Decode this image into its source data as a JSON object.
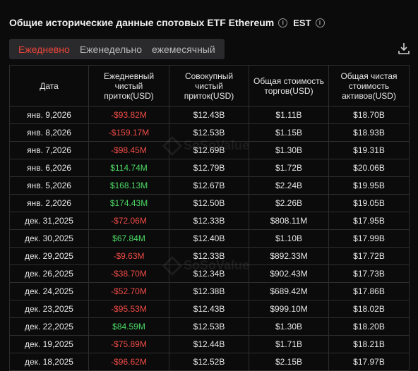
{
  "header": {
    "title": "Общие исторические данные спотовых ETF Ethereum",
    "timezone": "EST"
  },
  "tabs": [
    "Ежедневно",
    "Еженедельно",
    "ежемесячный"
  ],
  "active_tab": 0,
  "columns": [
    "Дата",
    "Ежедневный чистый приток(USD)",
    "Совокупный чистый приток(USD)",
    "Общая стоимость торгов(USD)",
    "Общая чистая стоимость активов(USD)"
  ],
  "rows": [
    {
      "date": "янв. 9,2026",
      "daily": "-$93.82M",
      "sign": "neg",
      "cumulative": "$12.43B",
      "traded": "$1.11B",
      "assets": "$18.70B"
    },
    {
      "date": "янв. 8,2026",
      "daily": "-$159.17M",
      "sign": "neg",
      "cumulative": "$12.53B",
      "traded": "$1.15B",
      "assets": "$18.93B"
    },
    {
      "date": "янв. 7,2026",
      "daily": "-$98.45M",
      "sign": "neg",
      "cumulative": "$12.69B",
      "traded": "$1.30B",
      "assets": "$19.31B"
    },
    {
      "date": "янв. 6,2026",
      "daily": "$114.74M",
      "sign": "pos",
      "cumulative": "$12.79B",
      "traded": "$1.72B",
      "assets": "$20.06B"
    },
    {
      "date": "янв. 5,2026",
      "daily": "$168.13M",
      "sign": "pos",
      "cumulative": "$12.67B",
      "traded": "$2.24B",
      "assets": "$19.95B"
    },
    {
      "date": "янв. 2,2026",
      "daily": "$174.43M",
      "sign": "pos",
      "cumulative": "$12.50B",
      "traded": "$2.26B",
      "assets": "$19.05B"
    },
    {
      "date": "дек. 31,2025",
      "daily": "-$72.06M",
      "sign": "neg",
      "cumulative": "$12.33B",
      "traded": "$808.11M",
      "assets": "$17.95B"
    },
    {
      "date": "дек. 30,2025",
      "daily": "$67.84M",
      "sign": "pos",
      "cumulative": "$12.40B",
      "traded": "$1.10B",
      "assets": "$17.99B"
    },
    {
      "date": "дек. 29,2025",
      "daily": "-$9.63M",
      "sign": "neg",
      "cumulative": "$12.33B",
      "traded": "$892.33M",
      "assets": "$17.72B"
    },
    {
      "date": "дек. 26,2025",
      "daily": "-$38.70M",
      "sign": "neg",
      "cumulative": "$12.34B",
      "traded": "$902.43M",
      "assets": "$17.73B"
    },
    {
      "date": "дек. 24,2025",
      "daily": "-$52.70M",
      "sign": "neg",
      "cumulative": "$12.38B",
      "traded": "$689.42M",
      "assets": "$17.86B"
    },
    {
      "date": "дек. 23,2025",
      "daily": "-$95.53M",
      "sign": "neg",
      "cumulative": "$12.43B",
      "traded": "$999.10M",
      "assets": "$18.02B"
    },
    {
      "date": "дек. 22,2025",
      "daily": "$84.59M",
      "sign": "pos",
      "cumulative": "$12.53B",
      "traded": "$1.30B",
      "assets": "$18.20B"
    },
    {
      "date": "дек. 19,2025",
      "daily": "-$75.89M",
      "sign": "neg",
      "cumulative": "$12.44B",
      "traded": "$1.71B",
      "assets": "$18.21B"
    },
    {
      "date": "дек. 18,2025",
      "daily": "-$96.62M",
      "sign": "neg",
      "cumulative": "$12.52B",
      "traded": "$2.15B",
      "assets": "$17.97B"
    }
  ],
  "watermark": "SoSoValue",
  "colors": {
    "negative": "#ee4b44",
    "positive": "#4cd964",
    "active_tab": "#e8443a",
    "background": "#0b0b0c"
  },
  "icons": {
    "info": "info-icon",
    "download": "download-icon",
    "watermark_logo": "sosovalue-logo-icon"
  }
}
